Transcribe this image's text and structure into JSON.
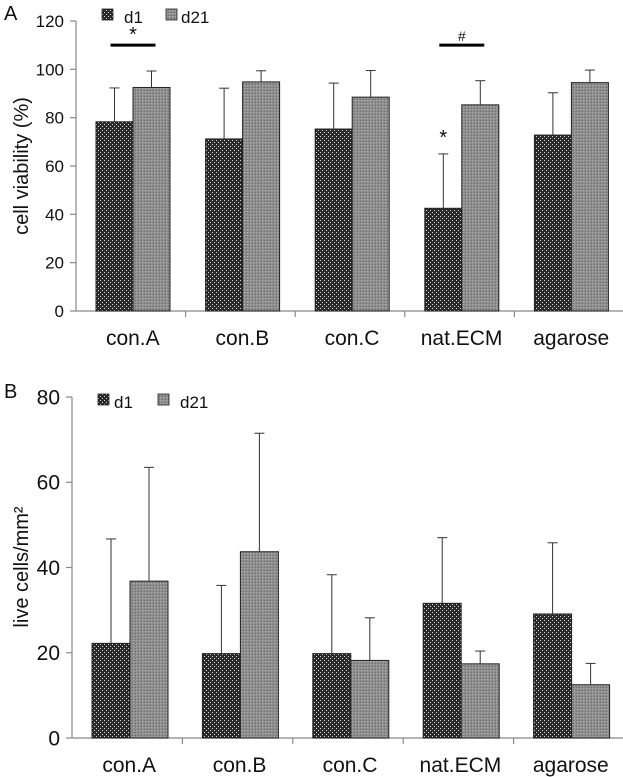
{
  "chart_data": [
    {
      "panel_label": "A",
      "type": "bar",
      "ylabel": "cell viability (%)",
      "ylim": [
        0,
        120
      ],
      "yticks": [
        0,
        20,
        40,
        60,
        80,
        100,
        120
      ],
      "categories": [
        "con.A",
        "con.B",
        "con.C",
        "nat.ECM",
        "agarose"
      ],
      "series": [
        {
          "name": "d1",
          "values": [
            78.3,
            71.2,
            75.3,
            42.5,
            72.8
          ],
          "errors": [
            14,
            21,
            19,
            22.5,
            17.5
          ]
        },
        {
          "name": "d21",
          "values": [
            92.5,
            94.8,
            88.5,
            85.3,
            94.5
          ],
          "errors": [
            6.8,
            4.6,
            11,
            10,
            5.2
          ]
        }
      ],
      "legend_position": "top-left",
      "annotations": [
        {
          "text": "*",
          "type": "bracket",
          "category": "con.A"
        },
        {
          "text": "#",
          "type": "bracket",
          "category": "nat.ECM"
        },
        {
          "text": "*",
          "type": "marker",
          "category": "nat.ECM",
          "series": "d1"
        }
      ],
      "grid": false
    },
    {
      "panel_label": "B",
      "type": "bar",
      "ylabel": "live cells/mm²",
      "ylim": [
        0,
        80
      ],
      "yticks": [
        0,
        20,
        40,
        60,
        80
      ],
      "categories": [
        "con.A",
        "con.B",
        "con.C",
        "nat.ECM",
        "agarose"
      ],
      "series": [
        {
          "name": "d1",
          "values": [
            22.2,
            19.8,
            19.8,
            31.6,
            29.1
          ],
          "errors": [
            24.5,
            16,
            18.5,
            15.4,
            16.7
          ]
        },
        {
          "name": "d21",
          "values": [
            36.8,
            43.7,
            18.2,
            17.4,
            12.5
          ],
          "errors": [
            26.7,
            27.8,
            10,
            3,
            5
          ]
        }
      ],
      "legend_position": "top-left",
      "grid": false
    }
  ],
  "colors": {
    "d1": "#2a2a2a",
    "d21": "#8e8e8e",
    "axis": "#888888"
  },
  "icons": {
    "d1": "dotted-dark-pattern",
    "d21": "hatched-grey-pattern"
  }
}
